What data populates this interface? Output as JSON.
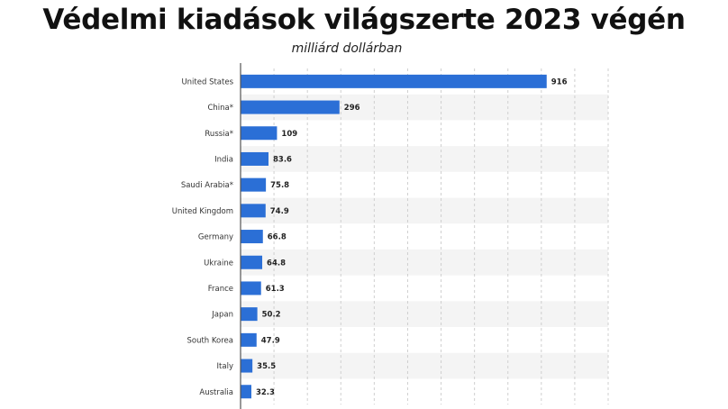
{
  "title": "Védelmi kiadások világszerte 2023 végén",
  "subtitle": "milliárd dollárban",
  "colors": {
    "bar": "#2b6fd6",
    "band": "#f4f4f4",
    "grid": "#cfcfcf",
    "axis": "#555555"
  },
  "chart_data": {
    "type": "bar",
    "orientation": "horizontal",
    "categories": [
      "United States",
      "China*",
      "Russia*",
      "India",
      "Saudi Arabia*",
      "United Kingdom",
      "Germany",
      "Ukraine",
      "France",
      "Japan",
      "South Korea",
      "Italy",
      "Australia"
    ],
    "values": [
      916,
      296,
      109,
      83.6,
      75.8,
      74.9,
      66.8,
      64.8,
      61.3,
      50.2,
      47.9,
      35.5,
      32.3
    ],
    "value_labels": [
      "916",
      "296",
      "109",
      "83.6",
      "75.8",
      "74.9",
      "66.8",
      "64.8",
      "61.3",
      "50.2",
      "47.9",
      "35.5",
      "32.3"
    ],
    "title": "Védelmi kiadások világszerte 2023 végén",
    "subtitle": "milliárd dollárban",
    "xlim": [
      0,
      1100
    ],
    "grid": true
  }
}
